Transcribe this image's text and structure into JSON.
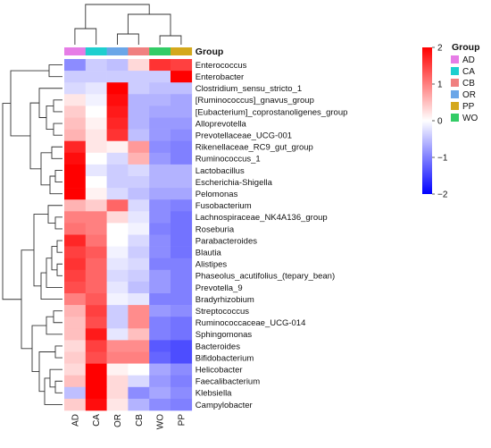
{
  "chart_data": {
    "type": "heatmap",
    "annotation_title": "Group",
    "columns": [
      "AD",
      "CA",
      "OR",
      "CB",
      "WO",
      "PP"
    ],
    "rows": [
      "Enterococcus",
      "Enterobacter",
      "Clostridium_sensu_stricto_1",
      "[Ruminococcus]_gnavus_group",
      "[Eubacterium]_coprostanoligenes_group",
      "Alloprevotella",
      "Prevotellaceae_UCG-001",
      "Rikenellaceae_RC9_gut_group",
      "Ruminococcus_1",
      "Lactobacillus",
      "Escherichia-Shigella",
      "Pelomonas",
      "Fusobacterium",
      "Lachnospiraceae_NK4A136_group",
      "Roseburia",
      "Parabacteroides",
      "Blautia",
      "Alistipes",
      "Phaseolus_acutifolius_(tepary_bean)",
      "Prevotella_9",
      "Bradyrhizobium",
      "Streptococcus",
      "Ruminococcaceae_UCG-014",
      "Sphingomonas",
      "Bacteroides",
      "Bifidobacterium",
      "Helicobacter",
      "Faecalibacterium",
      "Klebsiella",
      "Campylobacter"
    ],
    "values": [
      [
        -0.9,
        -0.4,
        -0.5,
        0.3,
        1.6,
        1.5
      ],
      [
        -0.4,
        -0.4,
        -0.4,
        -0.4,
        -0.4,
        2.0
      ],
      [
        -0.3,
        -0.2,
        2.0,
        -0.4,
        -0.5,
        -0.5
      ],
      [
        0.2,
        -0.1,
        1.9,
        -0.6,
        -0.6,
        -0.7
      ],
      [
        0.4,
        0.0,
        1.8,
        -0.6,
        -0.7,
        -0.7
      ],
      [
        0.5,
        0.1,
        1.7,
        -0.6,
        -0.8,
        -0.8
      ],
      [
        0.6,
        0.2,
        1.6,
        -0.5,
        -0.8,
        -0.9
      ],
      [
        1.7,
        0.2,
        0.1,
        0.8,
        -0.9,
        -1.0
      ],
      [
        1.9,
        0.0,
        -0.3,
        0.6,
        -0.8,
        -1.0
      ],
      [
        2.0,
        -0.2,
        -0.4,
        -0.3,
        -0.6,
        -0.6
      ],
      [
        2.0,
        0.0,
        -0.4,
        -0.4,
        -0.6,
        -0.6
      ],
      [
        2.0,
        0.1,
        -0.3,
        -0.5,
        -0.7,
        -0.7
      ],
      [
        0.6,
        0.4,
        1.2,
        -0.3,
        -0.9,
        -1.0
      ],
      [
        1.0,
        1.0,
        0.3,
        -0.2,
        -0.9,
        -1.1
      ],
      [
        1.1,
        1.0,
        0.0,
        -0.1,
        -1.0,
        -1.1
      ],
      [
        1.7,
        1.1,
        0.0,
        -0.3,
        -0.9,
        -1.1
      ],
      [
        1.5,
        1.3,
        -0.1,
        -0.4,
        -0.9,
        -1.1
      ],
      [
        1.6,
        1.2,
        -0.2,
        -0.3,
        -1.0,
        -1.0
      ],
      [
        1.5,
        1.2,
        -0.3,
        -0.4,
        -0.8,
        -1.0
      ],
      [
        1.4,
        1.2,
        -0.2,
        -0.5,
        -0.8,
        -1.0
      ],
      [
        1.0,
        1.3,
        -0.1,
        -0.2,
        -1.0,
        -1.0
      ],
      [
        0.6,
        1.5,
        -0.4,
        0.9,
        -0.8,
        -0.9
      ],
      [
        0.5,
        1.4,
        -0.4,
        0.9,
        -1.0,
        -1.1
      ],
      [
        0.5,
        1.8,
        -0.2,
        0.5,
        -1.0,
        -1.1
      ],
      [
        0.3,
        1.5,
        0.9,
        0.9,
        -1.3,
        -1.4
      ],
      [
        0.4,
        1.4,
        1.0,
        1.0,
        -1.2,
        -1.4
      ],
      [
        0.3,
        2.0,
        0.1,
        0.0,
        -0.7,
        -0.9
      ],
      [
        0.5,
        2.0,
        0.3,
        -0.3,
        -0.8,
        -1.0
      ],
      [
        -0.5,
        2.0,
        0.3,
        -0.9,
        -0.7,
        -0.9
      ],
      [
        0.4,
        1.9,
        0.2,
        -0.6,
        -0.9,
        -1.0
      ]
    ],
    "color_scale": {
      "min": -2,
      "max": 2,
      "low_color": "#0000ff",
      "mid_color": "#ffffff",
      "high_color": "#ff0000",
      "ticks": [
        "2",
        "1",
        "0",
        "−1",
        "−2"
      ]
    },
    "groups": [
      {
        "name": "AD",
        "color": "#e67de6"
      },
      {
        "name": "CA",
        "color": "#1ecfcf"
      },
      {
        "name": "CB",
        "color": "#f08080"
      },
      {
        "name": "OR",
        "color": "#6aa6e8"
      },
      {
        "name": "PP",
        "color": "#d4a81c"
      },
      {
        "name": "WO",
        "color": "#33cc66"
      }
    ],
    "legend_position": "right",
    "row_dendrogram": "left",
    "column_dendrogram": "top"
  }
}
